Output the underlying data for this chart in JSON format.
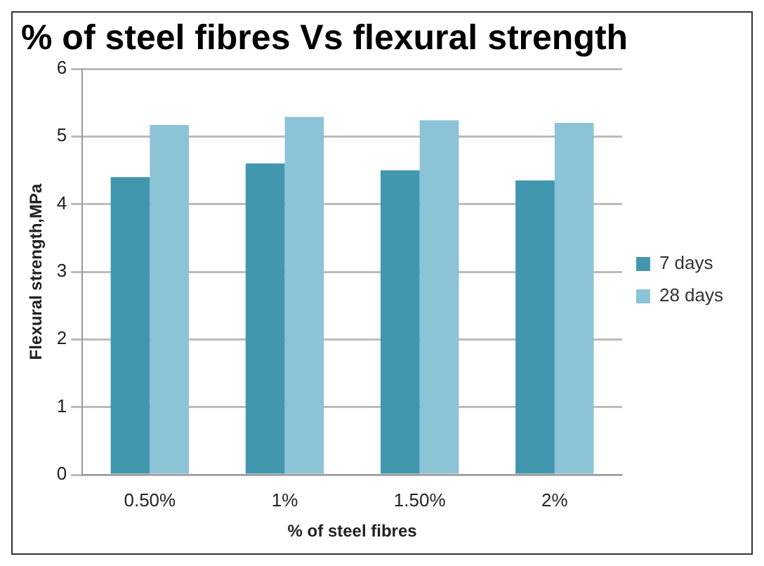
{
  "chart_data": {
    "type": "bar",
    "title": "% of steel fibres Vs flexural strength",
    "xlabel": "% of steel fibres",
    "ylabel": "Flexural strength,MPa",
    "categories": [
      "0.50%",
      "1%",
      "1.50%",
      "2%"
    ],
    "series": [
      {
        "name": "7 days",
        "color": "#4198ae",
        "values": [
          4.4,
          4.6,
          4.5,
          4.35
        ]
      },
      {
        "name": "28 days",
        "color": "#8dc3d6",
        "values": [
          5.17,
          5.29,
          5.24,
          5.2
        ]
      }
    ],
    "ylim": [
      0,
      6
    ],
    "yticks": [
      0,
      1,
      2,
      3,
      4,
      5,
      6
    ],
    "grid": "y",
    "legend": "right"
  }
}
